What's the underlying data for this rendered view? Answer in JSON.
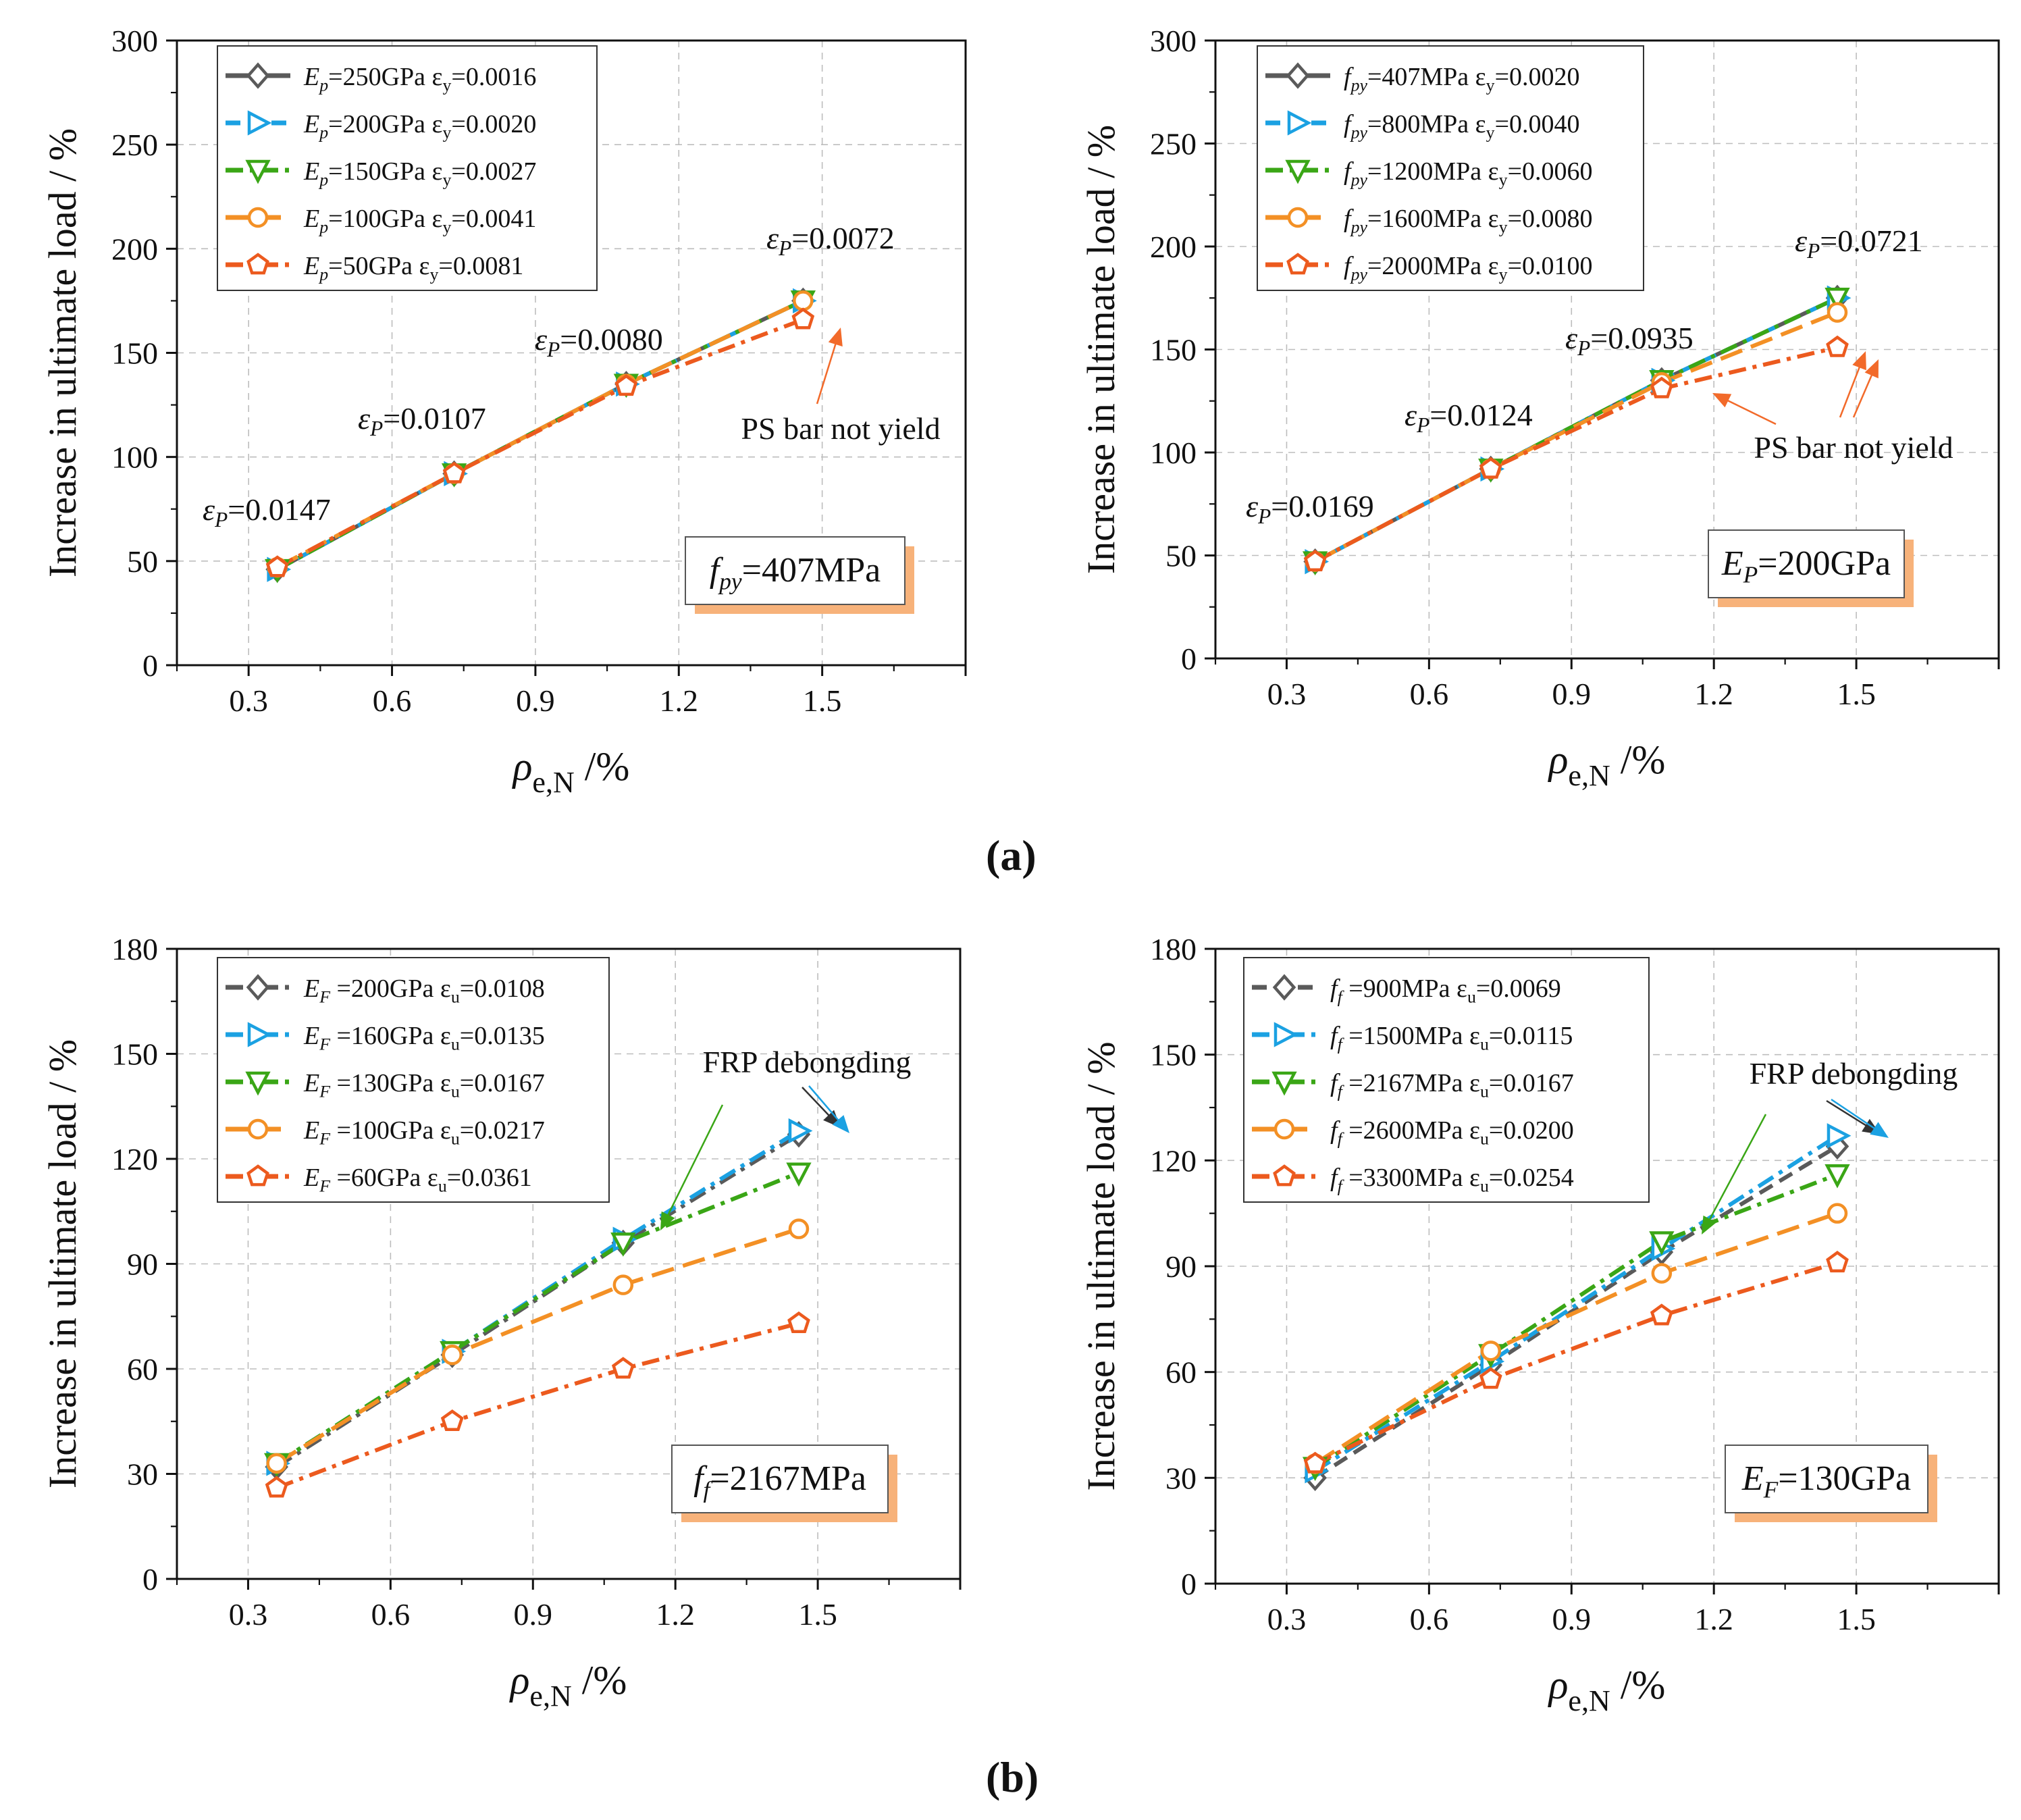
{
  "panel_labels": {
    "a": "(a)",
    "b": "(b)"
  },
  "colors": {
    "gray": "#5a5a5a",
    "blue": "#1ba1e2",
    "green": "#3aa616",
    "orange": "#f39025",
    "redorange": "#ec5a1e",
    "arrow_red": "#f26a2a",
    "arrow_green": "#3aa616",
    "arrow_blue": "#1ba1e2",
    "arrow_dark": "#333333",
    "box_shadow": "#f7b27a"
  },
  "chart_data": [
    {
      "id": "a-left",
      "type": "line",
      "title": "",
      "xlabel": "ρe,N /%",
      "ylabel": "Increase in ultimate load / %",
      "xlim": [
        0.15,
        1.8
      ],
      "ylim": [
        0,
        300
      ],
      "xticks": [
        "0.3",
        "0.6",
        "0.9",
        "1.2",
        "1.5"
      ],
      "yticks": [
        "0",
        "50",
        "100",
        "150",
        "200",
        "250",
        "300"
      ],
      "x": [
        0.36,
        0.73,
        1.09,
        1.46
      ],
      "series": [
        {
          "name": "Ep=250GPa  εy=0.0016",
          "values": [
            46,
            92,
            135,
            175
          ],
          "color": "gray",
          "marker": "diamond",
          "dash": "solid"
        },
        {
          "name": "Ep=200GPa  εy=0.0020",
          "values": [
            46,
            92,
            135,
            175
          ],
          "color": "blue",
          "marker": "tri-right",
          "dash": "dash"
        },
        {
          "name": "Ep=150GPa  εy=0.0027",
          "values": [
            46,
            92,
            135,
            175
          ],
          "color": "green",
          "marker": "tri-down",
          "dash": "dashdot"
        },
        {
          "name": "Ep=100GPa  εy=0.0041",
          "values": [
            47,
            92,
            135,
            175
          ],
          "color": "orange",
          "marker": "circle",
          "dash": "longdash"
        },
        {
          "name": "Ep=50GPa    εy=0.0081",
          "values": [
            47,
            92,
            134,
            166
          ],
          "color": "redorange",
          "marker": "pentagon",
          "dash": "dashdot"
        }
      ],
      "legend": [
        {
          "sym": "E",
          "sub": "p",
          "rest": "=250GPa  ε",
          "sub2": "y",
          "tail": "=0.0016"
        },
        {
          "sym": "E",
          "sub": "p",
          "rest": "=200GPa  ε",
          "sub2": "y",
          "tail": "=0.0020"
        },
        {
          "sym": "E",
          "sub": "p",
          "rest": "=150GPa  ε",
          "sub2": "y",
          "tail": "=0.0027"
        },
        {
          "sym": "E",
          "sub": "p",
          "rest": "=100GPa  ε",
          "sub2": "y",
          "tail": "=0.0041"
        },
        {
          "sym": "E",
          "sub": "p",
          "rest": "=50GPa    ε",
          "sub2": "y",
          "tail": "=0.0081"
        }
      ],
      "annotations": [
        {
          "sym": "ε",
          "sub": "P",
          "rest": "=0.0147"
        },
        {
          "sym": "ε",
          "sub": "P",
          "rest": "=0.0107"
        },
        {
          "sym": "ε",
          "sub": "P",
          "rest": "=0.0080"
        },
        {
          "sym": "ε",
          "sub": "P",
          "rest": "=0.0072"
        }
      ],
      "note": "PS bar not yield",
      "condition": {
        "sym": "f",
        "sub": "py",
        "rest": "=407MPa"
      }
    },
    {
      "id": "a-right",
      "type": "line",
      "title": "",
      "xlabel": "ρe,N /%",
      "ylabel": "Increase in ultimate load / %",
      "xlim": [
        0.15,
        1.8
      ],
      "ylim": [
        0,
        300
      ],
      "xticks": [
        "0.3",
        "0.6",
        "0.9",
        "1.2",
        "1.5"
      ],
      "yticks": [
        "0",
        "50",
        "100",
        "150",
        "200",
        "250",
        "300"
      ],
      "x": [
        0.36,
        0.73,
        1.09,
        1.46
      ],
      "series": [
        {
          "name": "fpy=407MPa    εy=0.0020",
          "values": [
            47,
            92,
            135,
            175
          ],
          "color": "gray",
          "marker": "diamond",
          "dash": "solid"
        },
        {
          "name": "fpy=800MPa    εy=0.0040",
          "values": [
            47,
            92,
            135,
            175
          ],
          "color": "blue",
          "marker": "tri-right",
          "dash": "dash"
        },
        {
          "name": "fpy=1200MPa  εy=0.0060",
          "values": [
            47,
            92,
            135,
            175
          ],
          "color": "green",
          "marker": "tri-down",
          "dash": "dashdot"
        },
        {
          "name": "fpy=1600MPa  εy=0.0080",
          "values": [
            47,
            92,
            134,
            168
          ],
          "color": "orange",
          "marker": "circle",
          "dash": "longdash"
        },
        {
          "name": "fpy=2000MPa  εy=0.0100",
          "values": [
            47,
            92,
            131,
            151
          ],
          "color": "redorange",
          "marker": "pentagon",
          "dash": "dashdot"
        }
      ],
      "legend": [
        {
          "sym": "f",
          "sub": "py",
          "rest": "=407MPa    ε",
          "sub2": "y",
          "tail": "=0.0020"
        },
        {
          "sym": "f",
          "sub": "py",
          "rest": "=800MPa    ε",
          "sub2": "y",
          "tail": "=0.0040"
        },
        {
          "sym": "f",
          "sub": "py",
          "rest": "=1200MPa  ε",
          "sub2": "y",
          "tail": "=0.0060"
        },
        {
          "sym": "f",
          "sub": "py",
          "rest": "=1600MPa  ε",
          "sub2": "y",
          "tail": "=0.0080"
        },
        {
          "sym": "f",
          "sub": "py",
          "rest": "=2000MPa  ε",
          "sub2": "y",
          "tail": "=0.0100"
        }
      ],
      "annotations": [
        {
          "sym": "ε",
          "sub": "P",
          "rest": "=0.0169"
        },
        {
          "sym": "ε",
          "sub": "P",
          "rest": "=0.0124"
        },
        {
          "sym": "ε",
          "sub": "P",
          "rest": "=0.0935"
        },
        {
          "sym": "ε",
          "sub": "P",
          "rest": "=0.0721"
        }
      ],
      "note": "PS bar not yield",
      "condition": {
        "sym": "E",
        "sub": "P",
        "rest": "=200GPa"
      }
    },
    {
      "id": "b-left",
      "type": "line",
      "title": "",
      "xlabel": "ρe,N /%",
      "ylabel": "Increase in ultimate load / %",
      "xlim": [
        0.15,
        1.8
      ],
      "ylim": [
        0,
        180
      ],
      "xticks": [
        "0.3",
        "0.6",
        "0.9",
        "1.2",
        "1.5"
      ],
      "yticks": [
        "0",
        "30",
        "60",
        "90",
        "120",
        "150",
        "180"
      ],
      "x": [
        0.36,
        0.73,
        1.09,
        1.46
      ],
      "series": [
        {
          "name": "EF=200GPa  εu=0.0108",
          "values": [
            32,
            64,
            96,
            127
          ],
          "color": "gray",
          "marker": "diamond",
          "dash": "dashdot"
        },
        {
          "name": "EF=160GPa  εu=0.0135",
          "values": [
            33,
            65,
            97,
            128
          ],
          "color": "blue",
          "marker": "tri-right",
          "dash": "dashdot"
        },
        {
          "name": "EF=130GPa  εu=0.0167",
          "values": [
            33,
            65,
            96,
            116
          ],
          "color": "green",
          "marker": "tri-down",
          "dash": "dashdot"
        },
        {
          "name": "EF=100GPa  εu=0.0217",
          "values": [
            33,
            64,
            84,
            100
          ],
          "color": "orange",
          "marker": "circle",
          "dash": "longdash"
        },
        {
          "name": "EF=60GPa    εu=0.0361",
          "values": [
            26,
            45,
            60,
            73
          ],
          "color": "redorange",
          "marker": "pentagon",
          "dash": "dashdot"
        }
      ],
      "legend": [
        {
          "sym": "E",
          "sub": "F",
          "rest": " =200GPa  ε",
          "sub2": "u",
          "tail": "=0.0108"
        },
        {
          "sym": "E",
          "sub": "F",
          "rest": " =160GPa  ε",
          "sub2": "u",
          "tail": "=0.0135"
        },
        {
          "sym": "E",
          "sub": "F",
          "rest": " =130GPa  ε",
          "sub2": "u",
          "tail": "=0.0167"
        },
        {
          "sym": "E",
          "sub": "F",
          "rest": " =100GPa  ε",
          "sub2": "u",
          "tail": "=0.0217"
        },
        {
          "sym": "E",
          "sub": "F",
          "rest": " =60GPa    ε",
          "sub2": "u",
          "tail": "=0.0361"
        }
      ],
      "annotations": [],
      "note": "FRP debongding",
      "condition": {
        "sym": "f",
        "sub": "f",
        "rest": "=2167MPa"
      }
    },
    {
      "id": "b-right",
      "type": "line",
      "title": "",
      "xlabel": "ρe,N /%",
      "ylabel": "Increase in ultimate load / %",
      "xlim": [
        0.15,
        1.8
      ],
      "ylim": [
        0,
        180
      ],
      "xticks": [
        "0.3",
        "0.6",
        "0.9",
        "1.2",
        "1.5"
      ],
      "yticks": [
        "0",
        "30",
        "60",
        "90",
        "120",
        "150",
        "180"
      ],
      "x": [
        0.36,
        0.73,
        1.09,
        1.46
      ],
      "series": [
        {
          "name": "ff=900MPa    εu=0.0069",
          "values": [
            30,
            62,
            94,
            124
          ],
          "color": "gray",
          "marker": "diamond",
          "dash": "dash"
        },
        {
          "name": "ff=1500MPa  εu=0.0115",
          "values": [
            32,
            63,
            95,
            127
          ],
          "color": "blue",
          "marker": "tri-right",
          "dash": "dashdot"
        },
        {
          "name": "ff=2167MPa  εu=0.0167",
          "values": [
            33,
            65,
            97,
            116
          ],
          "color": "green",
          "marker": "tri-down",
          "dash": "dashdot"
        },
        {
          "name": "ff=2600MPa  εu=0.0200",
          "values": [
            34,
            66,
            88,
            105
          ],
          "color": "orange",
          "marker": "circle",
          "dash": "longdash"
        },
        {
          "name": "ff=3300MPa  εu=0.0254",
          "values": [
            34,
            58,
            76,
            91
          ],
          "color": "redorange",
          "marker": "pentagon",
          "dash": "dashdot"
        }
      ],
      "legend": [
        {
          "sym": "f",
          "sub": "f",
          "rest": " =900MPa     ε",
          "sub2": "u",
          "tail": "=0.0069"
        },
        {
          "sym": "f",
          "sub": "f",
          "rest": " =1500MPa  ε",
          "sub2": "u",
          "tail": "=0.0115"
        },
        {
          "sym": "f",
          "sub": "f",
          "rest": " =2167MPa  ε",
          "sub2": "u",
          "tail": "=0.0167"
        },
        {
          "sym": "f",
          "sub": "f",
          "rest": " =2600MPa  ε",
          "sub2": "u",
          "tail": "=0.0200"
        },
        {
          "sym": "f",
          "sub": "f",
          "rest": " =3300MPa  ε",
          "sub2": "u",
          "tail": "=0.0254"
        }
      ],
      "annotations": [],
      "note": "FRP debongding",
      "condition": {
        "sym": "E",
        "sub": "F",
        "rest": "=130GPa"
      }
    }
  ]
}
